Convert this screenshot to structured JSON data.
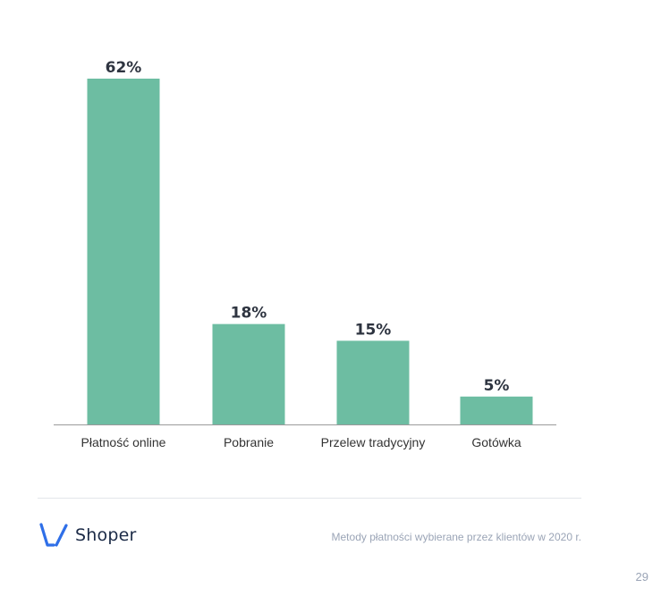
{
  "chart_data": {
    "type": "bar",
    "categories": [
      "Płatność online",
      "Pobranie",
      "Przelew tradycyjny",
      "Gotówka"
    ],
    "values": [
      62,
      18,
      15,
      5
    ],
    "value_labels": [
      "62%",
      "18%",
      "15%",
      "5%"
    ],
    "ylim": [
      0,
      62
    ],
    "grid": false,
    "bar_color": "#6dbda2",
    "axis_color": "#9a9a9a"
  },
  "footer": {
    "brand": "Shoper",
    "brand_color": "#2f6fe8",
    "caption": "Metody płatności wybierane przez klientów w 2020 r.",
    "page_number": "29"
  }
}
